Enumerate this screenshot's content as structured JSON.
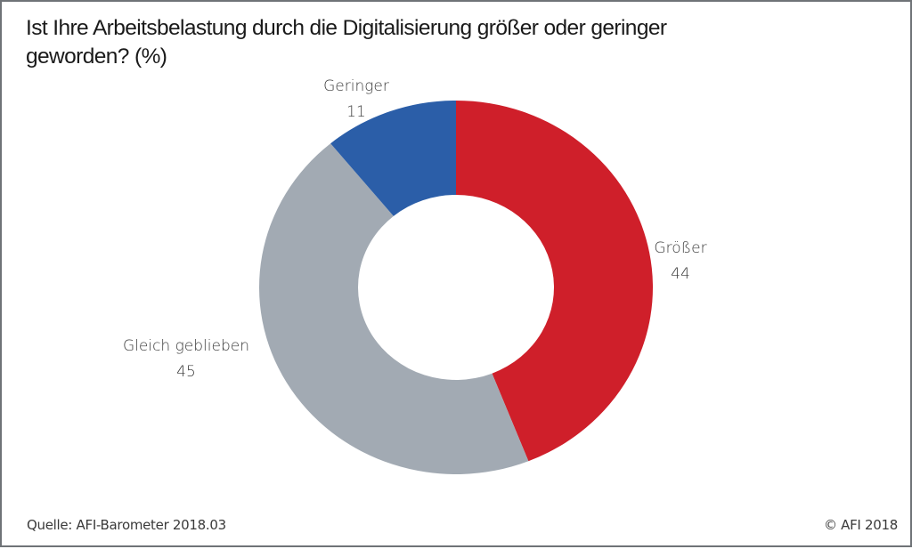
{
  "chart_data": {
    "type": "pie",
    "variant": "donut",
    "title": "Ist Ihre Arbeitsbelastung durch die Digitalisierung größer oder geringer geworden? (%)",
    "title_lines": [
      "Ist Ihre Arbeitsbelastung durch die Digitalisierung größer oder geringer",
      "geworden? (%)"
    ],
    "unit": "%",
    "start": "12 o'clock",
    "direction": "clockwise",
    "slices": [
      {
        "label": "Größer",
        "value": 44,
        "color": "#cf1f2a"
      },
      {
        "label": "Gleich geblieben",
        "value": 45,
        "color": "#a2aab3"
      },
      {
        "label": "Geringer",
        "value": 11,
        "color": "#2b5ea8"
      }
    ],
    "source": "Quelle: AFI-Barometer 2018.03",
    "copyright": "© AFI 2018"
  }
}
